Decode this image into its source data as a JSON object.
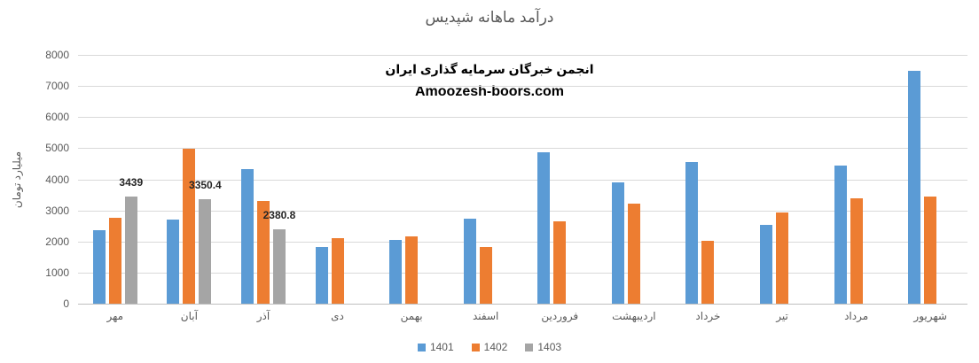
{
  "title": "درآمد ماهانه شپدیس",
  "watermark": {
    "line1": "انجمن خبرگان سرمایه گذاری ایران",
    "line2": "Amoozesh-boors.com"
  },
  "chart_data": {
    "type": "bar",
    "title": "درآمد ماهانه شپدیس",
    "xlabel": "",
    "ylabel": "میلیارد تومان",
    "ylim": [
      0,
      8000
    ],
    "yticks": [
      0,
      1000,
      2000,
      3000,
      4000,
      5000,
      6000,
      7000,
      8000
    ],
    "grid": true,
    "legend_position": "bottom-center",
    "categories": [
      "مهر",
      "آبان",
      "آذر",
      "دی",
      "بهمن",
      "اسفند",
      "فروردین",
      "اردیبهشت",
      "خرداد",
      "تیر",
      "مرداد",
      "شهریور"
    ],
    "series": [
      {
        "name": "1401",
        "color": "#5B9BD5",
        "values": [
          2350,
          2710,
          4330,
          1820,
          2050,
          2730,
          4880,
          3900,
          4560,
          2520,
          4430,
          7480
        ]
      },
      {
        "name": "1402",
        "color": "#ED7D31",
        "values": [
          2760,
          4980,
          3300,
          2110,
          2150,
          1830,
          2640,
          3210,
          2030,
          2930,
          3380,
          3450
        ]
      },
      {
        "name": "1403",
        "color": "#A5A5A5",
        "values": [
          3439,
          3350.4,
          2380.8,
          null,
          null,
          null,
          null,
          null,
          null,
          null,
          null,
          null
        ],
        "data_labels": [
          "3439",
          "3350.4",
          "2380.8",
          null,
          null,
          null,
          null,
          null,
          null,
          null,
          null,
          null
        ]
      }
    ]
  },
  "colors": {
    "background": "#FFFFFF",
    "gridline": "#D9D9D9",
    "axis_line": "#BFBFBF",
    "axis_text": "#595959",
    "title_text": "#595959",
    "data_label_text": "#262626",
    "watermark_text": "#000000"
  }
}
